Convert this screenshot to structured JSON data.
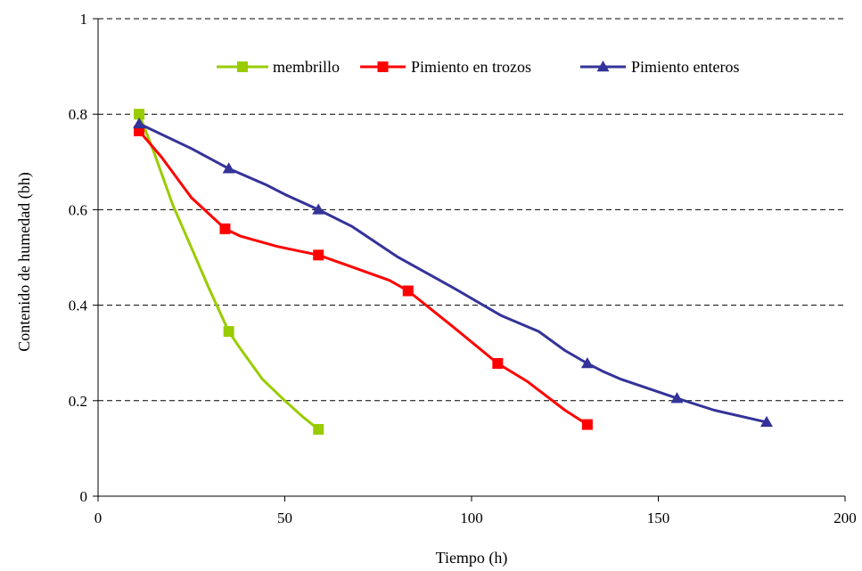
{
  "chart_data": {
    "type": "line",
    "title": "",
    "xlabel": "Tiempo (h)",
    "ylabel": "Contenido de humedad (bh)",
    "xlim": [
      0,
      200
    ],
    "ylim": [
      0,
      1
    ],
    "xticks": [
      "0",
      "50",
      "100",
      "150",
      "200"
    ],
    "yticks": [
      "0",
      "0.2",
      "0.4",
      "0.6",
      "0.8",
      "1"
    ],
    "grid": "horizontal dashed",
    "legend_position": "top",
    "series": [
      {
        "name": "membrillo",
        "color": "#99cc00",
        "marker": "square",
        "x": [
          11,
          35,
          59
        ],
        "y": [
          0.8,
          0.345,
          0.14
        ],
        "curve_x": [
          11,
          15,
          20,
          25,
          30,
          35,
          38,
          44,
          50,
          55,
          59
        ],
        "curve_y": [
          0.8,
          0.72,
          0.61,
          0.52,
          0.43,
          0.345,
          0.31,
          0.245,
          0.2,
          0.165,
          0.14
        ]
      },
      {
        "name": "Pimiento en trozos",
        "color": "#ff0000",
        "marker": "square",
        "x": [
          11,
          34,
          59,
          83,
          107,
          131
        ],
        "y": [
          0.765,
          0.56,
          0.505,
          0.43,
          0.278,
          0.15
        ],
        "curve_x": [
          11,
          17,
          25,
          34,
          38,
          48,
          59,
          68,
          78,
          83,
          95,
          107,
          115,
          125,
          131
        ],
        "curve_y": [
          0.765,
          0.71,
          0.625,
          0.56,
          0.545,
          0.523,
          0.505,
          0.48,
          0.452,
          0.43,
          0.355,
          0.278,
          0.24,
          0.18,
          0.15
        ]
      },
      {
        "name": "Pimiento enteros",
        "color": "#333399",
        "marker": "triangle",
        "x": [
          11,
          35,
          59,
          131,
          155,
          179
        ],
        "y": [
          0.78,
          0.686,
          0.6,
          0.278,
          0.205,
          0.155
        ],
        "curve_x": [
          11,
          25,
          35,
          45,
          50,
          59,
          68,
          80,
          95,
          108,
          118,
          125,
          131,
          135,
          140,
          155,
          165,
          179
        ],
        "curve_y": [
          0.78,
          0.728,
          0.686,
          0.652,
          0.632,
          0.6,
          0.565,
          0.502,
          0.437,
          0.378,
          0.345,
          0.305,
          0.278,
          0.262,
          0.245,
          0.205,
          0.18,
          0.155
        ]
      }
    ]
  }
}
